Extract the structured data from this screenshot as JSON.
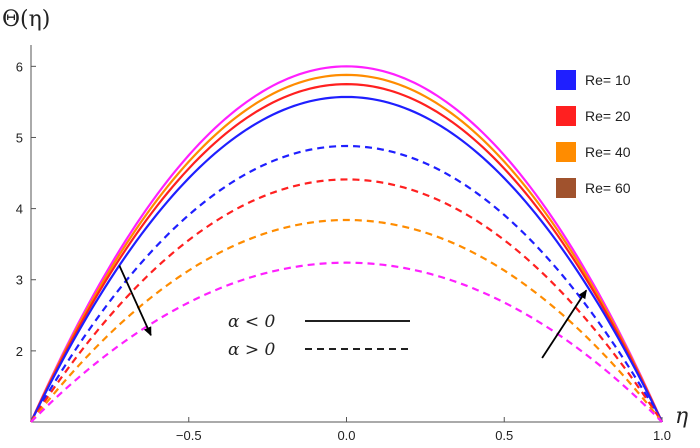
{
  "chart_data": {
    "type": "line",
    "xlabel": "η",
    "ylabel": "Θ(η)",
    "xlim": [
      -1.0,
      1.0
    ],
    "ylim": [
      1.0,
      6.3
    ],
    "x_ticks": [
      -0.5,
      0.0,
      0.5,
      1.0
    ],
    "x_tick_labels": [
      "−0.5",
      "0.0",
      "0.5",
      "1.0"
    ],
    "y_ticks": [
      2,
      3,
      4,
      5,
      6
    ],
    "y_tick_labels": [
      "2",
      "3",
      "4",
      "5",
      "6"
    ],
    "grid": false,
    "legend": {
      "placement": "top-right",
      "entries": [
        {
          "label": "Re= 10",
          "color": "#1f1fff"
        },
        {
          "label": "Re= 20",
          "color": "#ff2020"
        },
        {
          "label": "Re= 40",
          "color": "#ff8c00"
        },
        {
          "label": "Re= 60",
          "color": "#a0522d"
        }
      ]
    },
    "style_legend": [
      {
        "label": "α < 0",
        "dash": "solid"
      },
      {
        "label": "α > 0",
        "dash": "dashed"
      }
    ],
    "series": [
      {
        "color": "#ff20ff",
        "dash": "solid",
        "peak": 6.0,
        "base": 1.0
      },
      {
        "color": "#ff8c00",
        "dash": "solid",
        "peak": 5.88,
        "base": 1.0
      },
      {
        "color": "#ff2020",
        "dash": "solid",
        "peak": 5.75,
        "base": 1.0
      },
      {
        "color": "#1f1fff",
        "dash": "solid",
        "peak": 5.57,
        "base": 1.0
      },
      {
        "color": "#1f1fff",
        "dash": "dashed",
        "peak": 4.88,
        "base": 1.0
      },
      {
        "color": "#ff2020",
        "dash": "dashed",
        "peak": 4.41,
        "base": 1.0
      },
      {
        "color": "#ff8c00",
        "dash": "dashed",
        "peak": 3.84,
        "base": 1.0
      },
      {
        "color": "#ff20ff",
        "dash": "dashed",
        "peak": 3.24,
        "base": 1.0
      }
    ],
    "arrows": [
      {
        "from": [
          -0.72,
          3.2
        ],
        "to": [
          -0.62,
          2.22
        ]
      },
      {
        "from": [
          0.62,
          1.9
        ],
        "to": [
          0.76,
          2.85
        ]
      }
    ]
  }
}
